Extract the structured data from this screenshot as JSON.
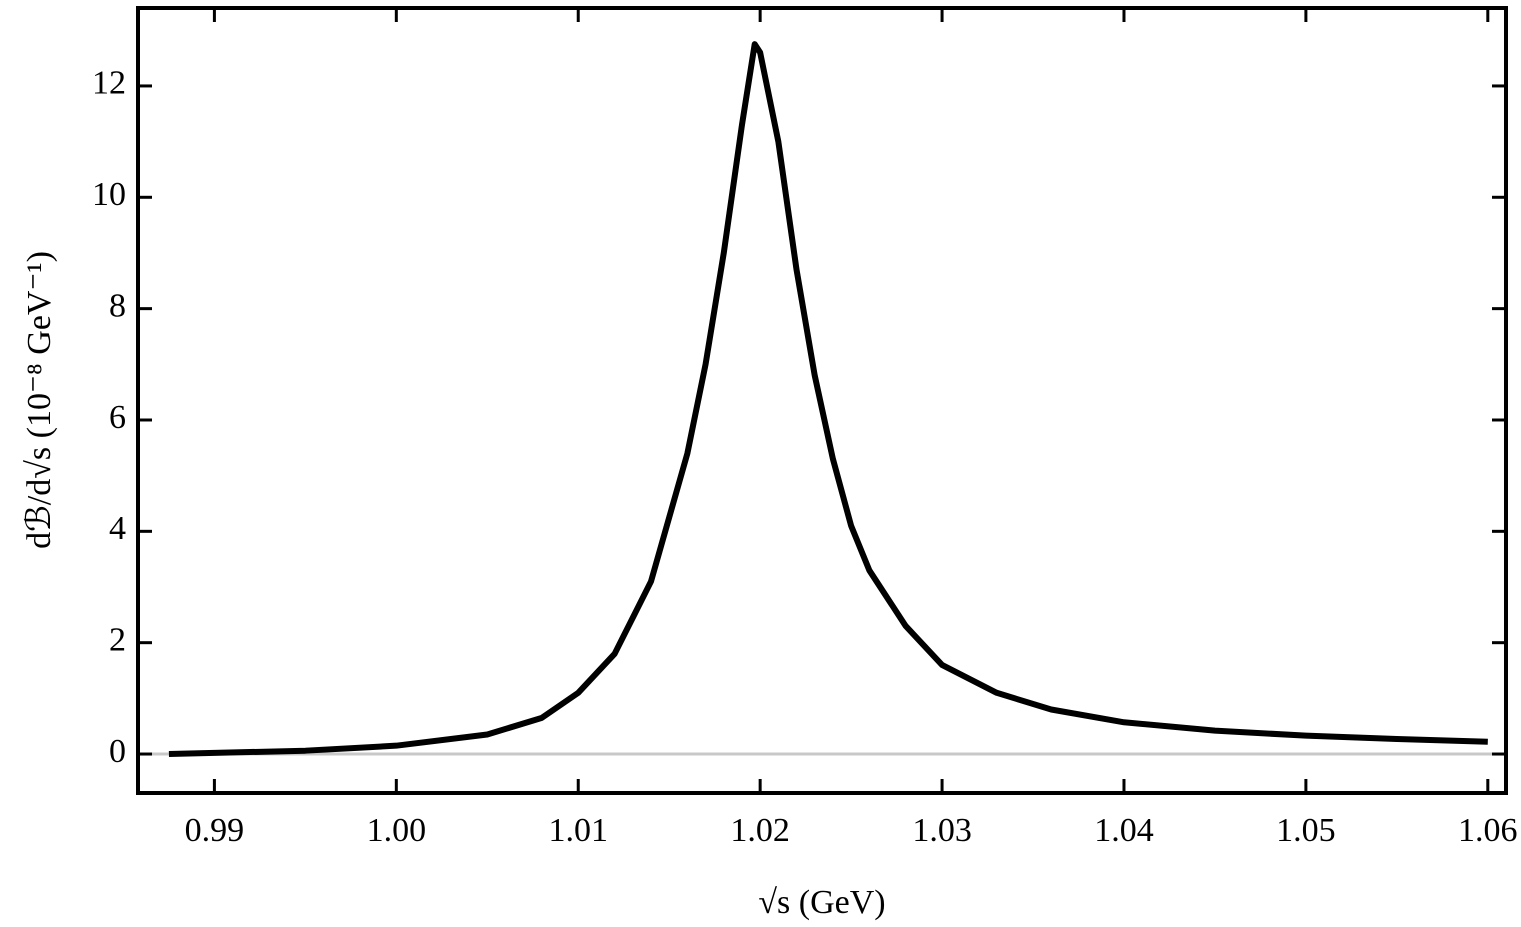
{
  "chart_data": {
    "type": "line",
    "xlabel": "√s (GeV)",
    "ylabel": "dℬ/d√s (10⁻⁸ GeV⁻¹)",
    "x": [
      0.9875,
      0.99,
      0.995,
      1.0,
      1.005,
      1.008,
      1.01,
      1.012,
      1.014,
      1.016,
      1.017,
      1.018,
      1.019,
      1.0197,
      1.02,
      1.021,
      1.022,
      1.023,
      1.024,
      1.025,
      1.026,
      1.028,
      1.03,
      1.033,
      1.036,
      1.04,
      1.045,
      1.05,
      1.055,
      1.06
    ],
    "values": [
      0.0,
      0.02,
      0.06,
      0.15,
      0.35,
      0.65,
      1.1,
      1.8,
      3.1,
      5.4,
      7.0,
      9.0,
      11.3,
      12.75,
      12.6,
      11.0,
      8.7,
      6.8,
      5.3,
      4.1,
      3.3,
      2.3,
      1.6,
      1.1,
      0.8,
      0.57,
      0.42,
      0.33,
      0.27,
      0.22
    ],
    "color": "#000000",
    "xlim": [
      0.9858,
      1.061
    ],
    "ylim": [
      -0.7,
      13.4
    ],
    "xticks": [
      0.99,
      {
        "value": 1,
        "label": "1.00"
      },
      1.01,
      1.02,
      1.03,
      1.04,
      1.05,
      1.06
    ],
    "yticks": [
      0,
      2,
      4,
      6,
      8,
      10,
      12
    ],
    "zero_line": true
  }
}
